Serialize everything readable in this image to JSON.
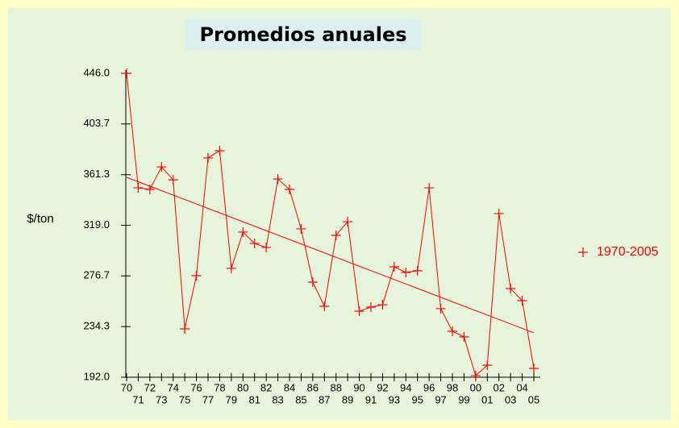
{
  "chart_data": {
    "type": "line",
    "title": "Promedios anuales",
    "ylabel": "$/ton",
    "categories": [
      "70",
      "71",
      "72",
      "73",
      "74",
      "75",
      "76",
      "77",
      "78",
      "79",
      "80",
      "81",
      "82",
      "83",
      "84",
      "85",
      "86",
      "87",
      "88",
      "89",
      "90",
      "91",
      "92",
      "93",
      "94",
      "95",
      "96",
      "97",
      "98",
      "99",
      "00",
      "01",
      "02",
      "03",
      "04",
      "05"
    ],
    "series": [
      {
        "name": "1970-2005",
        "color": "#ff0000",
        "values": [
          446,
          350.3,
          349,
          367.8,
          357,
          232.4,
          276.9,
          375.3,
          381.3,
          283,
          313.3,
          303.8,
          300.5,
          357.7,
          349,
          316,
          271.5,
          251.3,
          310.6,
          322,
          247.2,
          250.6,
          252.6,
          284.3,
          279.6,
          281,
          350.3,
          249.3,
          230.4,
          225.7,
          193.3,
          202,
          328.8,
          266.1,
          256,
          199.4
        ]
      }
    ],
    "trendline": {
      "color": "#ff0000",
      "values": [
        359.1,
        229.1
      ]
    },
    "ylim": [
      192,
      446
    ],
    "yticks": [
      {
        "value": 192,
        "label": "192.0"
      },
      {
        "value": 234.3,
        "label": "234.3"
      },
      {
        "value": 276.7,
        "label": "276.7"
      },
      {
        "value": 319,
        "label": "319.0"
      },
      {
        "value": 361.3,
        "label": "361.3"
      },
      {
        "value": 403.7,
        "label": "403.7"
      },
      {
        "value": 446,
        "label": "446.0"
      }
    ],
    "legend": "right"
  }
}
